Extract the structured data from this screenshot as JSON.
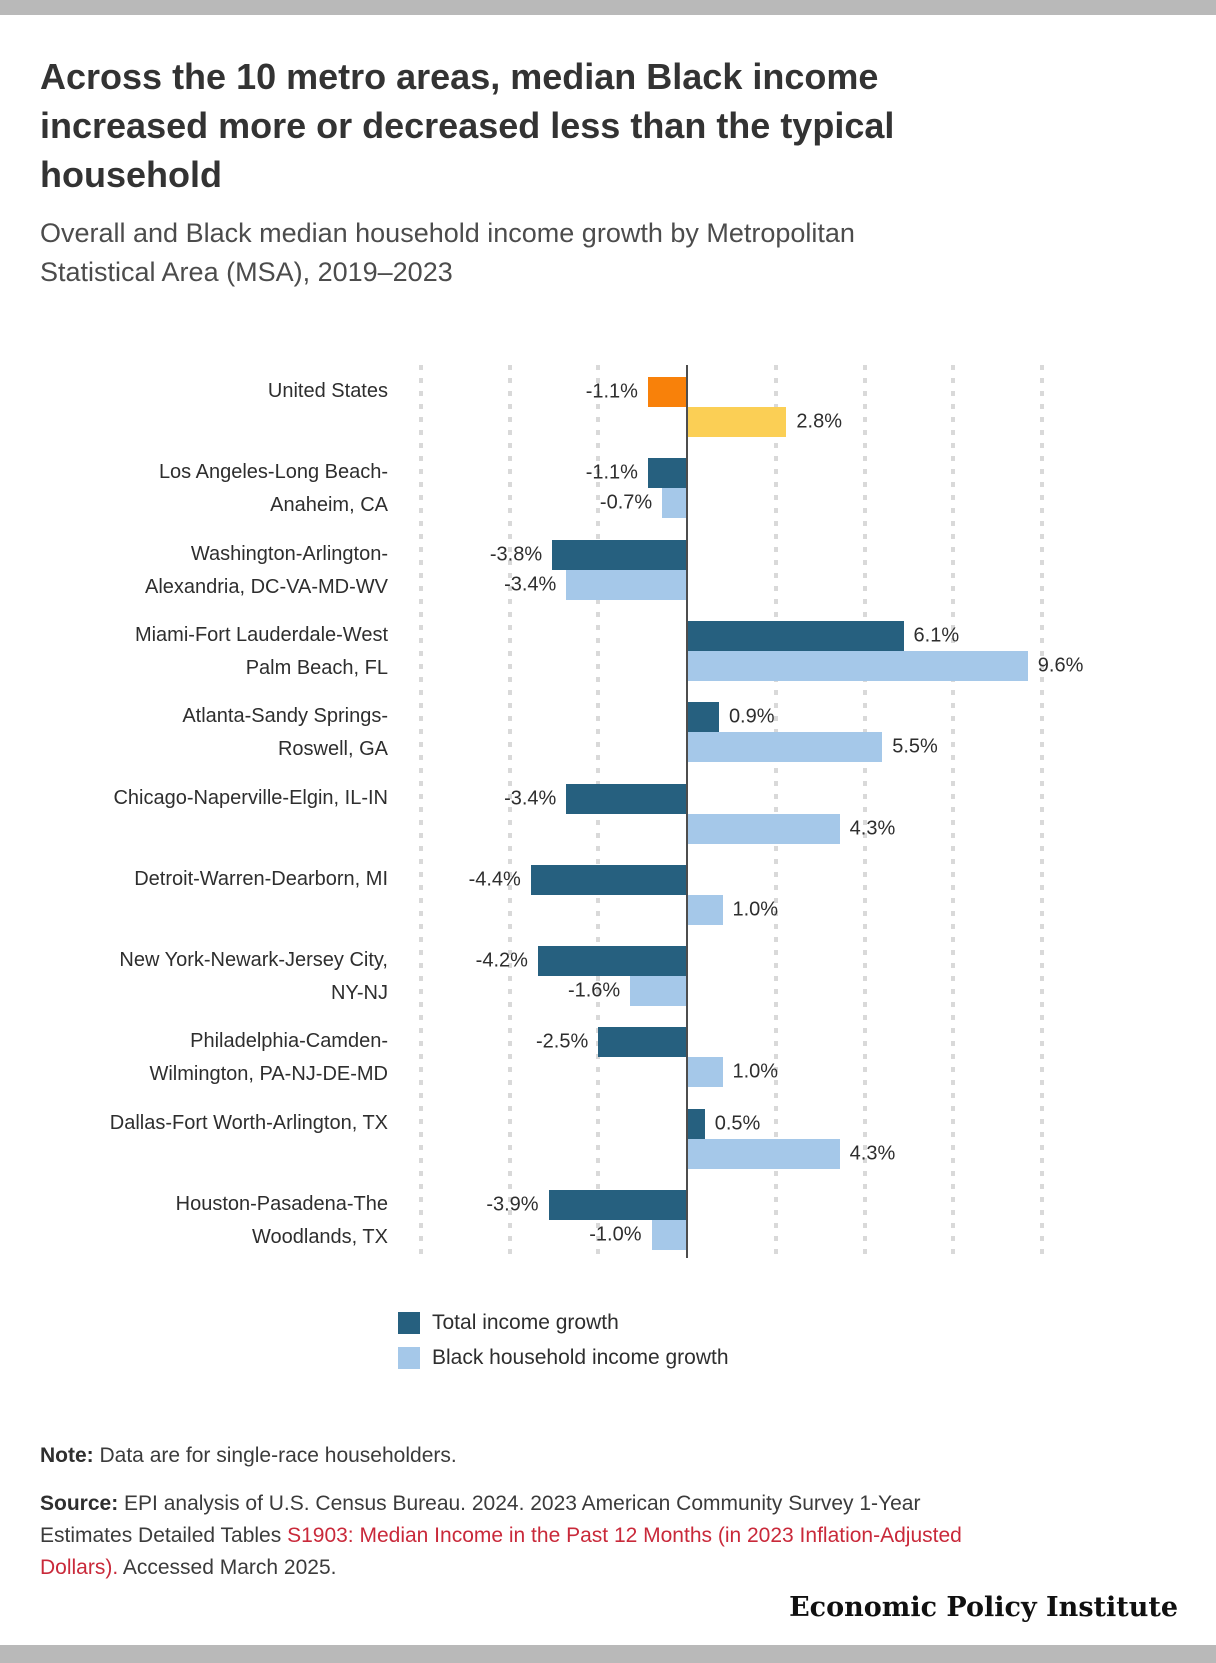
{
  "page": {
    "top_bar_color": "#b9b9b9",
    "bottom_bar_color": "#b9b9b9",
    "background": "#ffffff"
  },
  "header": {
    "title": "Across the 10 metro areas, median Black income increased more or decreased less than the typical household",
    "subtitle": "Overall and Black median household income growth by Metropolitan Statistical Area (MSA), 2019–2023"
  },
  "chart_data": {
    "type": "bar",
    "orientation": "horizontal",
    "unit": "%",
    "xlim": [
      -7.5,
      10
    ],
    "gridline_step": 2.5,
    "grid": "dashed-vertical",
    "legend_position": "bottom",
    "series": [
      {
        "name": "Total income growth",
        "color": "#26607f",
        "highlight_color": "#f8810a"
      },
      {
        "name": "Black household income growth",
        "color": "#a5c8e9",
        "highlight_color": "#fbcf55"
      }
    ],
    "rows": [
      {
        "category": "United States",
        "label_lines": [
          "United States"
        ],
        "total": -1.1,
        "black": 2.8,
        "highlight": true
      },
      {
        "category": "Los Angeles-Long Beach-Anaheim, CA",
        "label_lines": [
          "Los Angeles-Long Beach-",
          "Anaheim, CA"
        ],
        "total": -1.1,
        "black": -0.7,
        "highlight": false
      },
      {
        "category": "Washington-Arlington-Alexandria, DC-VA-MD-WV",
        "label_lines": [
          "Washington-Arlington-",
          "Alexandria, DC-VA-MD-WV"
        ],
        "total": -3.8,
        "black": -3.4,
        "highlight": false
      },
      {
        "category": "Miami-Fort Lauderdale-West Palm Beach, FL",
        "label_lines": [
          "Miami-Fort Lauderdale-West",
          "Palm Beach, FL"
        ],
        "total": 6.1,
        "black": 9.6,
        "highlight": false
      },
      {
        "category": "Atlanta-Sandy Springs-Roswell, GA",
        "label_lines": [
          "Atlanta-Sandy Springs-",
          "Roswell, GA"
        ],
        "total": 0.9,
        "black": 5.5,
        "highlight": false
      },
      {
        "category": "Chicago-Naperville-Elgin, IL-IN",
        "label_lines": [
          "Chicago-Naperville-Elgin, IL-IN"
        ],
        "total": -3.4,
        "black": 4.3,
        "highlight": false
      },
      {
        "category": "Detroit-Warren-Dearborn, MI",
        "label_lines": [
          "Detroit-Warren-Dearborn, MI"
        ],
        "total": -4.4,
        "black": 1.0,
        "highlight": false
      },
      {
        "category": "New York-Newark-Jersey City, NY-NJ",
        "label_lines": [
          "New York-Newark-Jersey City,",
          "NY-NJ"
        ],
        "total": -4.2,
        "black": -1.6,
        "highlight": false
      },
      {
        "category": "Philadelphia-Camden-Wilmington, PA-NJ-DE-MD",
        "label_lines": [
          "Philadelphia-Camden-",
          "Wilmington, PA-NJ-DE-MD"
        ],
        "total": -2.5,
        "black": 1.0,
        "highlight": false
      },
      {
        "category": "Dallas-Fort Worth-Arlington, TX",
        "label_lines": [
          "Dallas-Fort Worth-Arlington, TX"
        ],
        "total": 0.5,
        "black": 4.3,
        "highlight": false
      },
      {
        "category": "Houston-Pasadena-The Woodlands, TX",
        "label_lines": [
          "Houston-Pasadena-The",
          "Woodlands, TX"
        ],
        "total": -3.9,
        "black": -1.0,
        "highlight": false
      }
    ]
  },
  "notes": {
    "note_label": "Note:",
    "note_text": " Data are for single-race householders.",
    "source_lines": [
      [
        {
          "t": "Source:",
          "b": 1
        },
        {
          "t": " EPI analysis of U.S. Census Bureau. 2024. 2023 American Community Survey 1-Year"
        }
      ],
      [
        {
          "t": "Estimates Detailed Tables "
        },
        {
          "t": "S1903: Median Income in the Past 12 Months (in 2023 Inflation-Adjusted",
          "r": 1
        }
      ],
      [
        {
          "t": "Dollars).",
          "r": 1
        },
        {
          "t": " Accessed March 2025."
        }
      ]
    ]
  },
  "footer": {
    "brand": "Economic Policy Institute"
  }
}
